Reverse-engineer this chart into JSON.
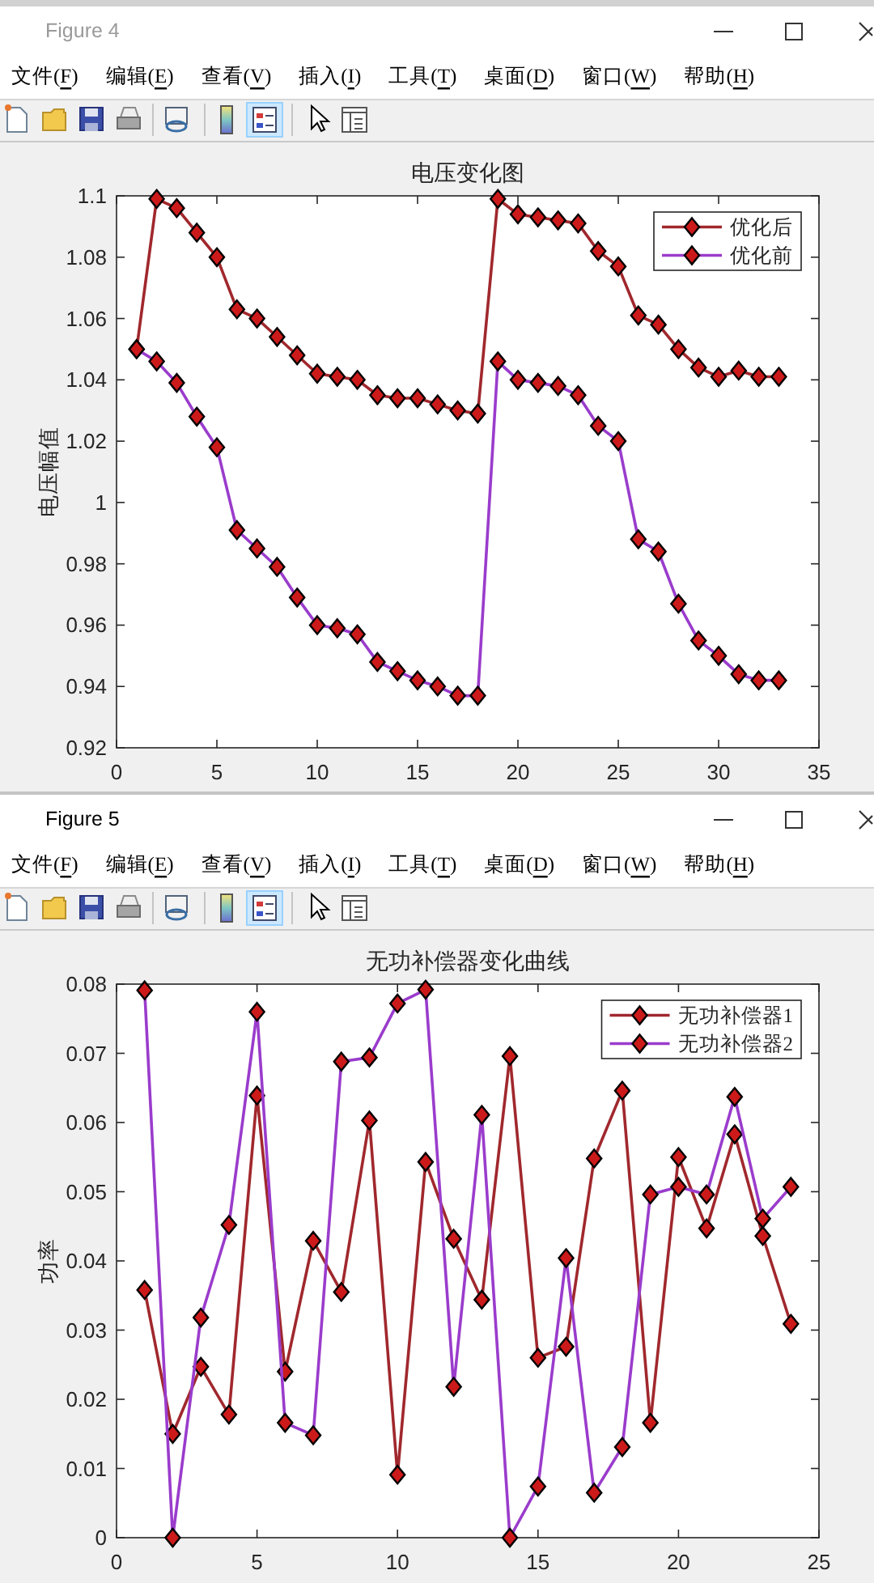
{
  "chart_data": [
    {
      "type": "line",
      "title": "电压变化图",
      "ylabel": "电压幅值",
      "annotations": [
        "Figure 4",
        "文件(F)",
        "编辑(E)",
        "查看(V)",
        "插入(I)",
        "工具(T)",
        "桌面(D)",
        "窗口(W)",
        "帮助(H)"
      ],
      "x": [
        1,
        2,
        3,
        4,
        5,
        6,
        7,
        8,
        9,
        10,
        11,
        12,
        13,
        14,
        15,
        16,
        17,
        18,
        19,
        20,
        21,
        22,
        23,
        24,
        25,
        26,
        27,
        28,
        29,
        30,
        31,
        32,
        33
      ],
      "series": [
        {
          "name": "优化后",
          "color": "#a0282d",
          "colors": [
            "#cc1a1a",
            "#cc1a1a",
            "#cc1a1a",
            "#cc1a1a",
            "#cc1a1a",
            "#cc1a1a",
            "#cc1a1a",
            "#cc1a1a",
            "#cc1a1a",
            "#cc1a1a",
            "#cc1a1a",
            "#cc1a1a",
            "#cc1a1a",
            "#cc1a1a",
            "#cc1a1a",
            "#cc1a1a",
            "#cc1a1a",
            "#cc1a1a",
            "#cc1a1a",
            "#cc1a1a",
            "#cc1a1a",
            "#cc1a1a",
            "#cc1a1a",
            "#cc1a1a",
            "#cc1a1a",
            "#cc1a1a",
            "#cc1a1a",
            "#cc1a1a",
            "#cc1a1a",
            "#cc1a1a",
            "#cc1a1a",
            "#cc1a1a",
            "#cc1a1a"
          ],
          "values": [
            1.05,
            1.099,
            1.096,
            1.088,
            1.08,
            1.063,
            1.06,
            1.054,
            1.048,
            1.042,
            1.041,
            1.04,
            1.035,
            1.034,
            1.034,
            1.032,
            1.03,
            1.029,
            1.099,
            1.094,
            1.093,
            1.092,
            1.091,
            1.082,
            1.077,
            1.061,
            1.058,
            1.05,
            1.044,
            1.041,
            1.043,
            1.041,
            1.041
          ]
        },
        {
          "name": "优化前",
          "color": "#9a3ccc",
          "colors": [
            "#cc1a1a",
            "#cc1a1a",
            "#cc1a1a",
            "#cc1a1a",
            "#cc1a1a",
            "#cc1a1a",
            "#cc1a1a",
            "#cc1a1a",
            "#cc1a1a",
            "#cc1a1a",
            "#cc1a1a",
            "#cc1a1a",
            "#cc1a1a",
            "#cc1a1a",
            "#cc1a1a",
            "#cc1a1a",
            "#cc1a1a",
            "#cc1a1a",
            "#cc1a1a",
            "#cc1a1a",
            "#cc1a1a",
            "#cc1a1a",
            "#cc1a1a",
            "#cc1a1a",
            "#cc1a1a",
            "#cc1a1a",
            "#cc1a1a",
            "#cc1a1a",
            "#cc1a1a",
            "#cc1a1a",
            "#cc1a1a",
            "#cc1a1a",
            "#cc1a1a"
          ],
          "values": [
            1.05,
            1.046,
            1.039,
            1.028,
            1.018,
            0.991,
            0.985,
            0.979,
            0.969,
            0.96,
            0.959,
            0.957,
            0.948,
            0.945,
            0.942,
            0.94,
            0.937,
            0.937,
            1.046,
            1.04,
            1.039,
            1.038,
            1.035,
            1.025,
            1.02,
            0.988,
            0.984,
            0.967,
            0.955,
            0.95,
            0.944,
            0.942,
            0.942
          ]
        }
      ],
      "xlim": [
        0,
        35
      ],
      "xticks": [
        0,
        5,
        10,
        15,
        20,
        25,
        30,
        35
      ],
      "ylim": [
        0.92,
        1.1
      ],
      "yticks": [
        0.92,
        0.94,
        0.96,
        0.98,
        1,
        1.02,
        1.04,
        1.06,
        1.08,
        1.1
      ],
      "grid": false,
      "legend": "top right",
      "marker": "diamond",
      "line_style": "solid"
    },
    {
      "type": "line",
      "title": "无功补偿器变化曲线",
      "ylabel": "功率",
      "annotations": [
        "Figure 5",
        "文件(F)",
        "编辑(E)",
        "查看(V)",
        "插入(I)",
        "工具(T)",
        "桌面(D)",
        "窗口(W)",
        "帮助(H)"
      ],
      "x": [
        1,
        2,
        3,
        4,
        5,
        6,
        7,
        8,
        9,
        10,
        11,
        12,
        13,
        14,
        15,
        16,
        17,
        18,
        19,
        20,
        21,
        22,
        23,
        24
      ],
      "series": [
        {
          "name": "无功补偿器1",
          "color": "#a0282d",
          "colors": [
            "#cc1a1a",
            "#cc1a1a",
            "#cc1a1a",
            "#cc1a1a",
            "#cc1a1a",
            "#cc1a1a",
            "#cc1a1a",
            "#cc1a1a",
            "#cc1a1a",
            "#cc1a1a",
            "#cc1a1a",
            "#cc1a1a",
            "#cc1a1a",
            "#cc1a1a",
            "#cc1a1a",
            "#cc1a1a",
            "#cc1a1a",
            "#cc1a1a",
            "#cc1a1a",
            "#cc1a1a",
            "#cc1a1a",
            "#cc1a1a",
            "#cc1a1a",
            "#cc1a1a"
          ],
          "values": [
            0.0358,
            0.015,
            0.0247,
            0.0178,
            0.0639,
            0.024,
            0.0429,
            0.0355,
            0.0603,
            0.0091,
            0.0543,
            0.0432,
            0.0344,
            0.0696,
            0.026,
            0.0276,
            0.0548,
            0.0646,
            0.0166,
            0.055,
            0.0447,
            0.0583,
            0.0436,
            0.0309
          ]
        },
        {
          "name": "无功补偿器2",
          "color": "#9a3ccc",
          "colors": [
            "#cc1a1a",
            "#cc1a1a",
            "#cc1a1a",
            "#cc1a1a",
            "#cc1a1a",
            "#cc1a1a",
            "#cc1a1a",
            "#cc1a1a",
            "#cc1a1a",
            "#cc1a1a",
            "#cc1a1a",
            "#cc1a1a",
            "#cc1a1a",
            "#cc1a1a",
            "#cc1a1a",
            "#cc1a1a",
            "#cc1a1a",
            "#cc1a1a",
            "#cc1a1a",
            "#cc1a1a",
            "#cc1a1a",
            "#cc1a1a",
            "#cc1a1a",
            "#cc1a1a"
          ],
          "values": [
            0.0791,
            0,
            0.0318,
            0.0452,
            0.076,
            0.0166,
            0.0148,
            0.0688,
            0.0694,
            0.0772,
            0.0792,
            0.0218,
            0.0611,
            0,
            0.0074,
            0.0404,
            0.0065,
            0.0131,
            0.0496,
            0.0507,
            0.0496,
            0.0637,
            0.0461,
            0.0507
          ]
        }
      ],
      "xlim": [
        0,
        25
      ],
      "xticks": [
        0,
        5,
        10,
        15,
        20,
        25
      ],
      "ylim": [
        0,
        0.08
      ],
      "yticks": [
        0,
        0.01,
        0.02,
        0.03,
        0.04,
        0.05,
        0.06,
        0.07,
        0.08
      ],
      "grid": false,
      "legend": "top right",
      "marker": "diamond",
      "line_style": "solid"
    }
  ]
}
